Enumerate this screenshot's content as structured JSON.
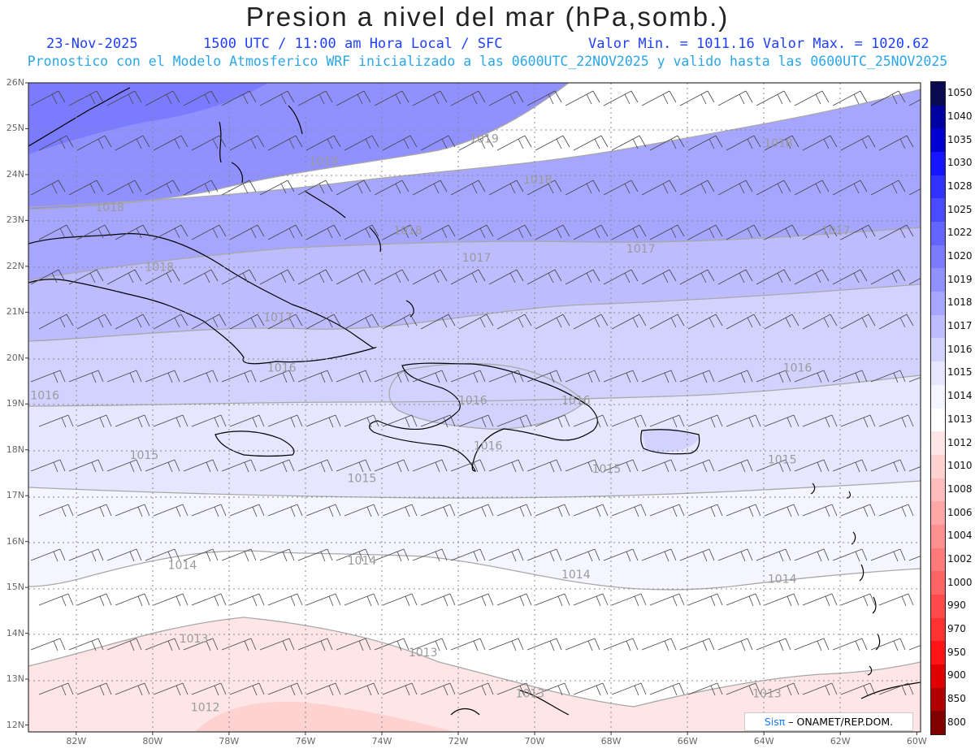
{
  "title": "Presion a nivel del mar (hPa,somb.)",
  "date": "23-Nov-2025",
  "time_info": "1500 UTC / 11:00 am Hora Local / SFC",
  "value_range": "Valor Min. = 1011.16  Valor Max. = 1020.62",
  "forecast_info": "Pronostico con el Modelo Atmosferico WRF inicializado a las 0600UTC_22NOV2025 y valido hasta las  0600UTC_25NOV2025",
  "lat_labels": [
    "26N",
    "25N",
    "24N",
    "23N",
    "22N",
    "21N",
    "20N",
    "19N",
    "18N",
    "17N",
    "16N",
    "15N",
    "14N",
    "13N",
    "12N"
  ],
  "lon_labels": [
    "82W",
    "80W",
    "78W",
    "76W",
    "74W",
    "72W",
    "70W",
    "68W",
    "66W",
    "64W",
    "62W",
    "60W"
  ],
  "legend": {
    "levels": [
      "1050",
      "1040",
      "1035",
      "1030",
      "1028",
      "1025",
      "1022",
      "1020",
      "1019",
      "1018",
      "1017",
      "1016",
      "1015",
      "1014",
      "1013",
      "1012",
      "1010",
      "1008",
      "1006",
      "1004",
      "1002",
      "1000",
      "990",
      "970",
      "950",
      "900",
      "850",
      "800"
    ],
    "colors": [
      "#0a0a50",
      "#0000a0",
      "#0000d0",
      "#1515ff",
      "#3232ff",
      "#4a4aff",
      "#6464ff",
      "#7b7bff",
      "#9090ff",
      "#a6a6ff",
      "#bcbcff",
      "#d2d2ff",
      "#e6e6ff",
      "#f5f5ff",
      "#ffffff",
      "#ffe6e6",
      "#ffd2d2",
      "#ffbcbc",
      "#ffa6a6",
      "#ff9090",
      "#ff7b7b",
      "#ff6464",
      "#ff4a4a",
      "#ff3232",
      "#ff1515",
      "#e00000",
      "#b00000",
      "#800000"
    ]
  },
  "contour_labels": [
    {
      "text": "1019",
      "lon": -71.7,
      "lat": 24.7
    },
    {
      "text": "1019",
      "lon": -75.9,
      "lat": 24.2
    },
    {
      "text": "1018",
      "lon": -64.0,
      "lat": 24.6
    },
    {
      "text": "1018",
      "lon": -70.3,
      "lat": 23.8
    },
    {
      "text": "1018",
      "lon": -81.5,
      "lat": 23.2
    },
    {
      "text": "1018",
      "lon": -73.7,
      "lat": 22.7
    },
    {
      "text": "1018",
      "lon": -80.2,
      "lat": 21.9
    },
    {
      "text": "1017",
      "lon": -71.9,
      "lat": 22.1
    },
    {
      "text": "1017",
      "lon": -67.6,
      "lat": 22.3
    },
    {
      "text": "1017",
      "lon": -62.5,
      "lat": 22.7
    },
    {
      "text": "1017",
      "lon": -77.1,
      "lat": 20.8
    },
    {
      "text": "1016",
      "lon": -63.5,
      "lat": 19.7
    },
    {
      "text": "1016",
      "lon": -77.0,
      "lat": 19.7
    },
    {
      "text": "1016",
      "lon": -83.2,
      "lat": 19.1
    },
    {
      "text": "1016",
      "lon": -72.0,
      "lat": 19.0
    },
    {
      "text": "1016",
      "lon": -69.3,
      "lat": 19.0
    },
    {
      "text": "1016",
      "lon": -71.6,
      "lat": 18.0
    },
    {
      "text": "1015",
      "lon": -80.6,
      "lat": 17.8
    },
    {
      "text": "1015",
      "lon": -74.9,
      "lat": 17.3
    },
    {
      "text": "1015",
      "lon": -68.5,
      "lat": 17.5
    },
    {
      "text": "1015",
      "lon": -63.9,
      "lat": 17.7
    },
    {
      "text": "1014",
      "lon": -79.6,
      "lat": 15.4
    },
    {
      "text": "1014",
      "lon": -74.9,
      "lat": 15.5
    },
    {
      "text": "1014",
      "lon": -69.3,
      "lat": 15.2
    },
    {
      "text": "1014",
      "lon": -63.9,
      "lat": 15.1
    },
    {
      "text": "1013",
      "lon": -79.3,
      "lat": 13.8
    },
    {
      "text": "1013",
      "lon": -73.3,
      "lat": 13.5
    },
    {
      "text": "1013",
      "lon": -70.5,
      "lat": 12.6
    },
    {
      "text": "1013",
      "lon": -64.3,
      "lat": 12.6
    },
    {
      "text": "1012",
      "lon": -79.0,
      "lat": 12.3
    }
  ],
  "credit": {
    "brand": "Sisπ",
    "org": " – ONAMET/REP.DOM."
  }
}
